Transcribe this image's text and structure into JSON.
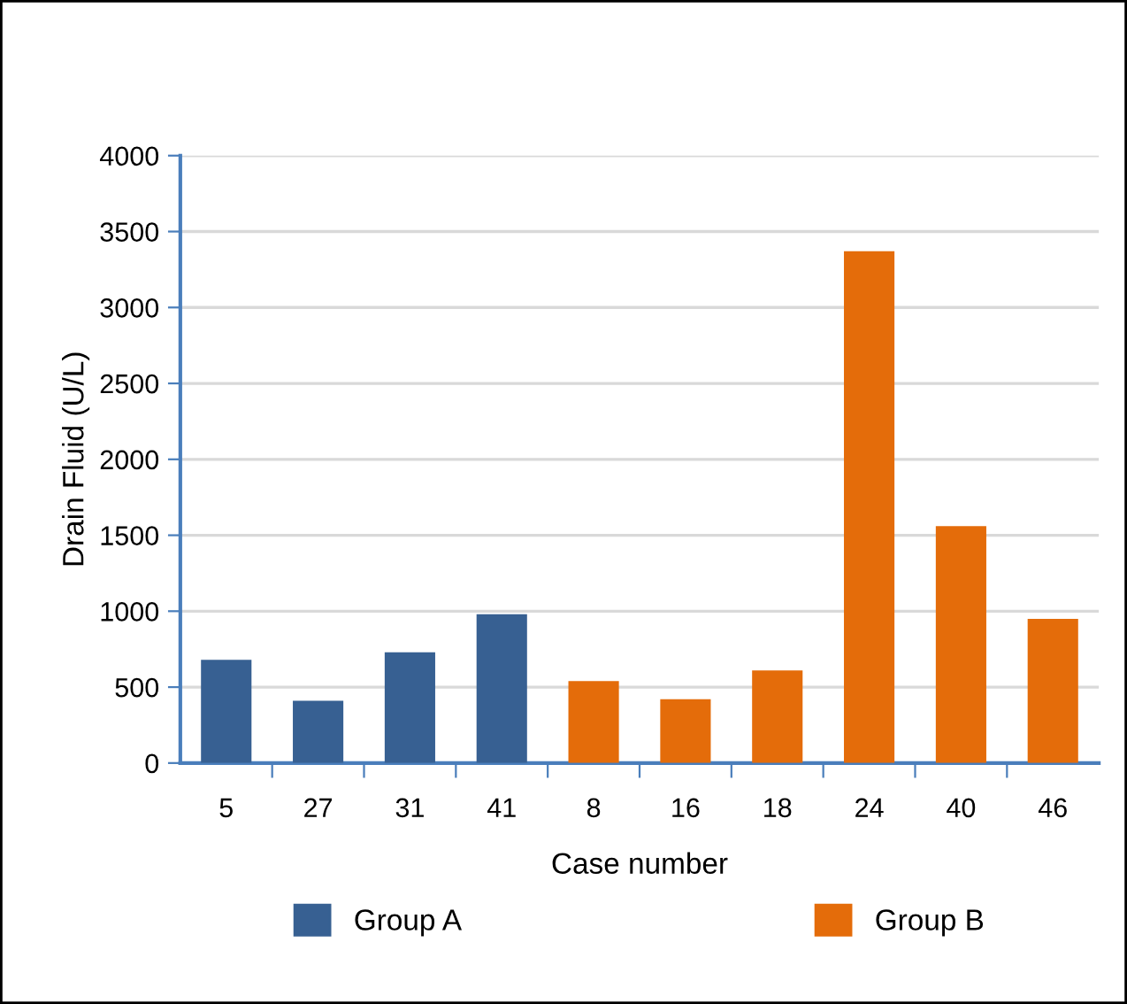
{
  "chart_data": {
    "type": "bar",
    "xlabel": "Case number",
    "ylabel": "Drain Fluid (U/L)",
    "categories": [
      "5",
      "27",
      "31",
      "41",
      "8",
      "16",
      "18",
      "24",
      "40",
      "46"
    ],
    "series": [
      {
        "name": "Group A",
        "color": "#376092",
        "values": [
          680,
          410,
          730,
          980,
          null,
          null,
          null,
          null,
          null,
          null
        ]
      },
      {
        "name": "Group B",
        "color": "#e46c0a",
        "values": [
          null,
          null,
          null,
          null,
          540,
          420,
          610,
          3370,
          1560,
          950
        ]
      }
    ],
    "ylim": [
      0,
      4000
    ],
    "yticks": [
      0,
      500,
      1000,
      1500,
      2000,
      2500,
      3000,
      3500,
      4000
    ],
    "grid": "y",
    "legend": "bottom"
  }
}
